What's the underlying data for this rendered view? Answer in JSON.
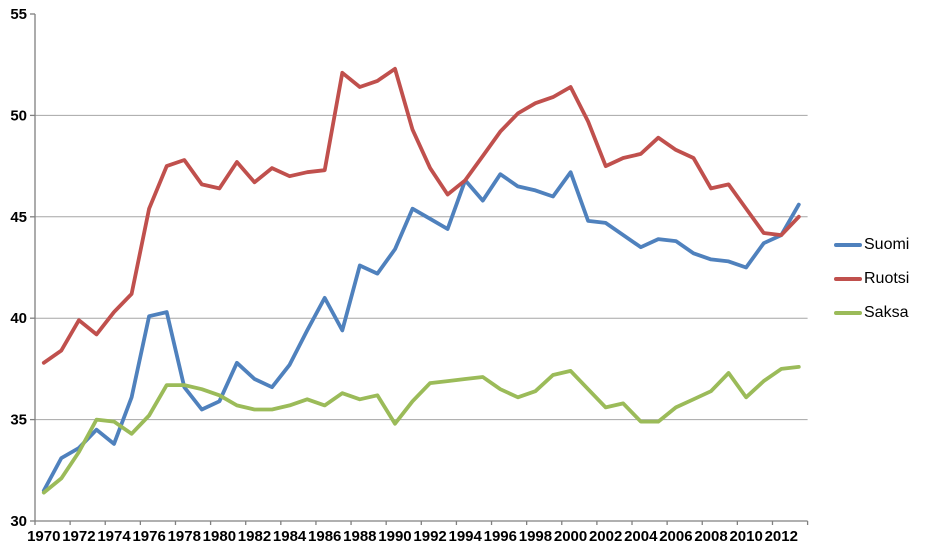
{
  "chart_data": {
    "type": "line",
    "title": "",
    "xlabel": "",
    "ylabel": "",
    "x": [
      1970,
      1971,
      1972,
      1973,
      1974,
      1975,
      1976,
      1977,
      1978,
      1979,
      1980,
      1981,
      1982,
      1983,
      1984,
      1985,
      1986,
      1987,
      1988,
      1989,
      1990,
      1991,
      1992,
      1993,
      1994,
      1995,
      1996,
      1997,
      1998,
      1999,
      2000,
      2001,
      2002,
      2003,
      2004,
      2005,
      2006,
      2007,
      2008,
      2009,
      2010,
      2011,
      2012,
      2013
    ],
    "x_tick_labels": [
      "1970",
      "1972",
      "1974",
      "1976",
      "1978",
      "1980",
      "1982",
      "1984",
      "1986",
      "1988",
      "1990",
      "1992",
      "1994",
      "1996",
      "1998",
      "2000",
      "2002",
      "2004",
      "2006",
      "2008",
      "2010",
      "2012"
    ],
    "y_ticks": [
      30,
      35,
      40,
      45,
      50,
      55
    ],
    "y_tick_labels": [
      "30",
      "35",
      "40",
      "45",
      "50",
      "55"
    ],
    "ylim": [
      30,
      55
    ],
    "grid": "horizontal",
    "legend_position": "right",
    "series": [
      {
        "name": "Suomi",
        "color": "#4F81BD",
        "values": [
          31.5,
          33.1,
          33.6,
          34.5,
          33.8,
          36.1,
          40.1,
          40.3,
          36.6,
          35.5,
          35.9,
          37.8,
          37.0,
          36.6,
          37.7,
          39.4,
          41.0,
          39.4,
          42.6,
          42.2,
          43.4,
          45.4,
          44.9,
          44.4,
          46.8,
          45.8,
          47.1,
          46.5,
          46.3,
          46.0,
          47.2,
          44.8,
          44.7,
          44.1,
          43.5,
          43.9,
          43.8,
          43.2,
          42.9,
          42.8,
          42.5,
          43.7,
          44.1,
          45.6
        ]
      },
      {
        "name": "Ruotsi",
        "color": "#C0504D",
        "values": [
          37.8,
          38.4,
          39.9,
          39.2,
          40.3,
          41.2,
          45.4,
          47.5,
          47.8,
          46.6,
          46.4,
          47.7,
          46.7,
          47.4,
          47.0,
          47.2,
          47.3,
          52.1,
          51.4,
          51.7,
          52.3,
          49.3,
          47.4,
          46.1,
          46.8,
          48.0,
          49.2,
          50.1,
          50.6,
          50.9,
          51.4,
          49.7,
          47.5,
          47.9,
          48.1,
          48.9,
          48.3,
          47.9,
          46.4,
          46.6,
          45.4,
          44.2,
          44.1,
          45.0
        ]
      },
      {
        "name": "Saksa",
        "color": "#9BBB59",
        "values": [
          31.4,
          32.1,
          33.4,
          35.0,
          34.9,
          34.3,
          35.2,
          36.7,
          36.7,
          36.5,
          36.2,
          35.7,
          35.5,
          35.5,
          35.7,
          36.0,
          35.7,
          36.3,
          36.0,
          36.2,
          34.8,
          35.9,
          36.8,
          36.9,
          37.0,
          37.1,
          36.5,
          36.1,
          36.4,
          37.2,
          37.4,
          36.5,
          35.6,
          35.8,
          34.9,
          34.9,
          35.6,
          36.0,
          36.4,
          37.3,
          36.1,
          36.9,
          37.5,
          37.6
        ]
      }
    ]
  },
  "colors": {
    "background": "#FFFFFF",
    "gridline": "#A6A6A6",
    "axis": "#808080",
    "tick_text": "#000000"
  }
}
